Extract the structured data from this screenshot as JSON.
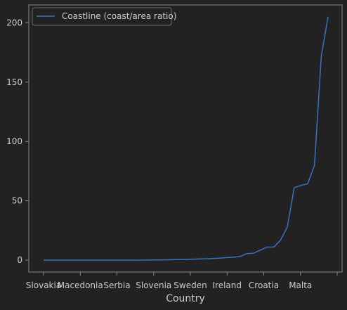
{
  "chart_data": {
    "type": "line",
    "xlabel": "Country",
    "ylabel": "",
    "x_tick_labels": [
      "Slovakia",
      "Macedonia",
      "Serbia",
      "Slovenia",
      "Sweden",
      "Ireland",
      "Croatia",
      "Malta",
      ""
    ],
    "ylim": [
      -10,
      215
    ],
    "y_ticks": [
      0,
      50,
      100,
      150,
      200
    ],
    "grid": false,
    "legend": "top-left",
    "series": [
      {
        "name": "Coastline (coast/area ratio)",
        "color": "#3a70c0",
        "values": [
          0,
          0,
          0,
          0,
          0,
          0,
          0,
          0,
          0,
          0,
          0,
          0,
          0,
          0,
          0,
          0.1,
          0.1,
          0.2,
          0.3,
          0.4,
          0.5,
          0.6,
          0.8,
          1.0,
          1.2,
          1.4,
          1.7,
          2.2,
          2.5,
          3.0,
          5.5,
          5.8,
          8.5,
          11.0,
          11.0,
          17.0,
          28.0,
          61.0,
          63.0,
          64.5,
          80.0,
          172.0,
          205.0
        ]
      }
    ]
  },
  "colors": {
    "background": "#222222",
    "axes_edge": "#888888",
    "text": "#cccccc"
  }
}
